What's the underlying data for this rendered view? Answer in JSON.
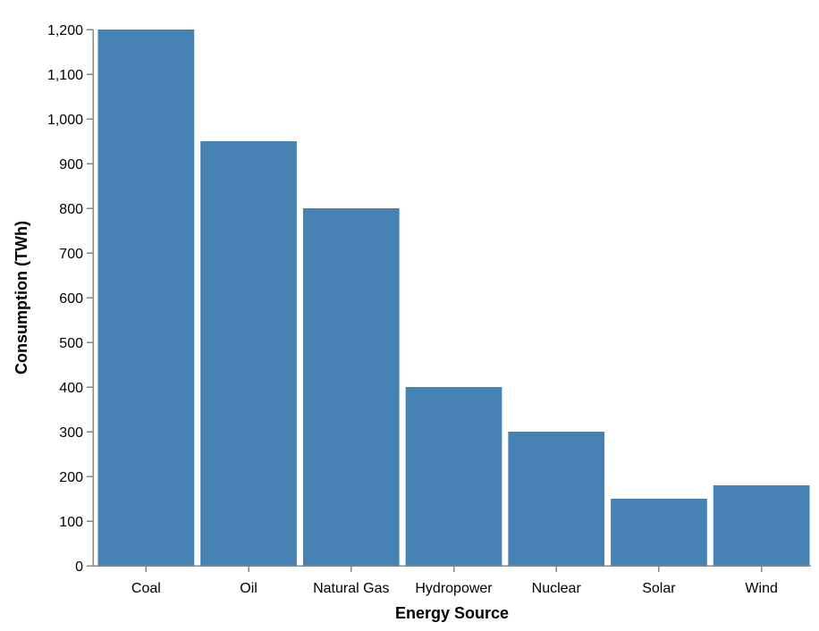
{
  "chart_data": {
    "type": "bar",
    "categories": [
      "Coal",
      "Oil",
      "Natural Gas",
      "Hydropower",
      "Nuclear",
      "Solar",
      "Wind"
    ],
    "values": [
      1200,
      950,
      800,
      400,
      300,
      150,
      180
    ],
    "title": "",
    "xlabel": "Energy Source",
    "ylabel": "Consumption (TWh)",
    "ylim": [
      0,
      1200
    ],
    "yticks": [
      0,
      100,
      200,
      300,
      400,
      500,
      600,
      700,
      800,
      900,
      1000,
      1100,
      1200
    ],
    "ytick_labels": [
      "0",
      "100",
      "200",
      "300",
      "400",
      "500",
      "600",
      "700",
      "800",
      "900",
      "1,000",
      "1,100",
      "1,200"
    ],
    "grid": false,
    "legend": "none",
    "colors": {
      "bar": "#4682b4",
      "axis": "#888888",
      "text": "#000000"
    }
  }
}
